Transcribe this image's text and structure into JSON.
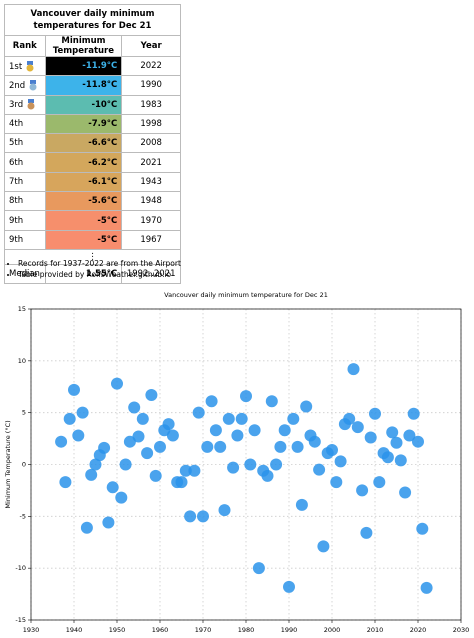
{
  "table": {
    "title": "Vancouver daily minimum temperatures for Dec 21",
    "columns": [
      "Rank",
      "Minimum Temperature",
      "Year"
    ],
    "rows": [
      [
        "1st",
        "-11.9°C",
        "2022"
      ],
      [
        "2nd",
        "-11.8°C",
        "1990"
      ],
      [
        "3rd",
        "-10°C",
        "1983"
      ],
      [
        "4th",
        "-7.9°C",
        "1998"
      ],
      [
        "5th",
        "-6.6°C",
        "2008"
      ],
      [
        "6th",
        "-6.2°C",
        "2021"
      ],
      [
        "7th",
        "-6.1°C",
        "1943"
      ],
      [
        "8th",
        "-5.6°C",
        "1948"
      ],
      [
        "9th",
        "-5°C",
        "1970"
      ],
      [
        "9th",
        "-5°C",
        "1967"
      ]
    ],
    "ellipsis": "⋮",
    "median": [
      "Median",
      "1.55°C",
      "1992..2021"
    ]
  },
  "notes": [
    "Records for 1937-2022 are from the Airport",
    "Table provided by RolfsWeather.github.io"
  ],
  "chart_data": {
    "type": "scatter",
    "title": "Vancouver daily minimum temperature for Dec 21",
    "y_label": "Minimum Temperature (°C)",
    "color": "#2a93ea",
    "grid": true,
    "x": [
      1937,
      1938,
      1939,
      1940,
      1941,
      1942,
      1943,
      1944,
      1945,
      1946,
      1947,
      1948,
      1949,
      1950,
      1951,
      1952,
      1953,
      1954,
      1955,
      1956,
      1957,
      1958,
      1959,
      1960,
      1961,
      1962,
      1963,
      1964,
      1965,
      1966,
      1967,
      1968,
      1969,
      1970,
      1971,
      1972,
      1973,
      1974,
      1975,
      1976,
      1977,
      1978,
      1979,
      1980,
      1981,
      1982,
      1983,
      1984,
      1985,
      1986,
      1987,
      1988,
      1989,
      1990,
      1991,
      1992,
      1993,
      1994,
      1995,
      1996,
      1997,
      1998,
      1999,
      2000,
      2001,
      2002,
      2003,
      2004,
      2005,
      2006,
      2007,
      2008,
      2009,
      2010,
      2011,
      2012,
      2013,
      2014,
      2015,
      2016,
      2017,
      2018,
      2019,
      2020,
      2021,
      2022
    ],
    "values": [
      2.2,
      -1.7,
      4.4,
      7.2,
      2.8,
      5.0,
      -6.1,
      -1.0,
      0,
      0.9,
      1.6,
      -5.6,
      -2.2,
      7.8,
      -3.2,
      0,
      2.2,
      5.5,
      2.7,
      4.4,
      1.1,
      6.7,
      -1.1,
      1.7,
      3.3,
      3.9,
      2.8,
      -1.7,
      -1.7,
      -0.6,
      -5,
      -0.6,
      5.0,
      -5,
      1.7,
      6.1,
      3.3,
      1.7,
      -4.4,
      4.4,
      -0.3,
      2.8,
      4.4,
      6.6,
      0,
      3.3,
      -10,
      -0.6,
      -1.1,
      6.1,
      0,
      1.7,
      3.3,
      -11.8,
      4.4,
      1.7,
      -3.9,
      5.6,
      2.8,
      2.2,
      -0.5,
      -7.9,
      1.1,
      1.4,
      -1.7,
      0.3,
      3.9,
      4.4,
      9.2,
      3.6,
      -2.5,
      -6.6,
      2.6,
      4.9,
      -1.7,
      1.1,
      0.7,
      3.1,
      2.1,
      0.4,
      -2.7,
      2.8,
      4.9,
      2.2,
      -6.2,
      -11.9
    ],
    "xlim": [
      1930,
      2030
    ],
    "xticks": [
      1930,
      1940,
      1950,
      1960,
      1970,
      1980,
      1990,
      2000,
      2010,
      2020,
      2030
    ],
    "ylim": [
      -15,
      15
    ],
    "yticks": [
      -15,
      -10,
      -5,
      0,
      5,
      10,
      15
    ]
  }
}
